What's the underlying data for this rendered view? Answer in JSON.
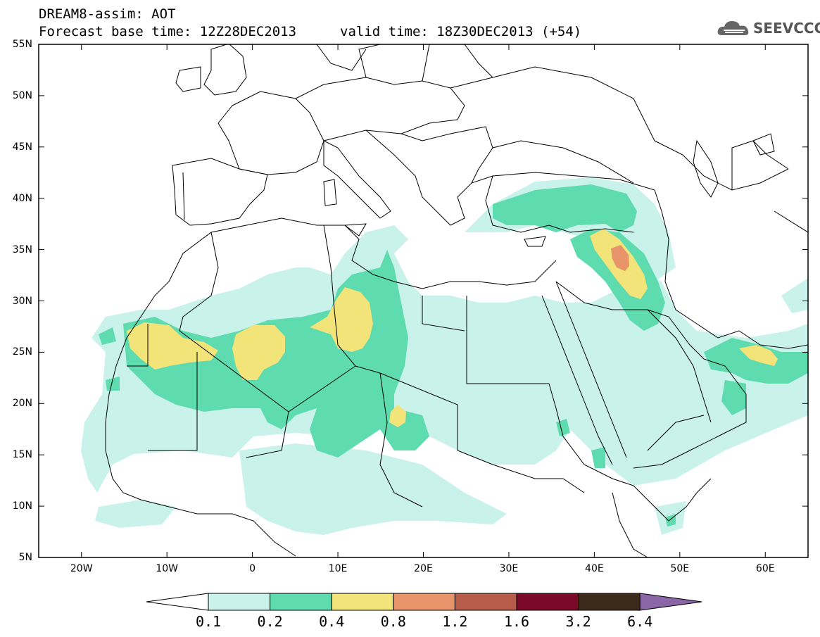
{
  "header": {
    "title_line1": "DREAM8-assim: AOT",
    "title_line2": "Forecast base time: 12Z28DEC2013",
    "valid_time": "valid time: 18Z30DEC2013 (+54)"
  },
  "logo": {
    "text": "SEEVCCC",
    "icon": "cloud-icon"
  },
  "map": {
    "variable": "AOT",
    "lat_labels": [
      "55N",
      "50N",
      "45N",
      "40N",
      "35N",
      "30N",
      "25N",
      "20N",
      "15N",
      "10N",
      "5N"
    ],
    "lon_labels": [
      "20W",
      "10W",
      "0",
      "10E",
      "20E",
      "30E",
      "40E",
      "50E",
      "60E"
    ],
    "lat_range": [
      5,
      55
    ],
    "lon_range": [
      -25,
      65
    ]
  },
  "colorbar": {
    "levels": [
      "0.1",
      "0.2",
      "0.4",
      "0.8",
      "1.2",
      "1.6",
      "3.2",
      "6.4"
    ],
    "colors": [
      "#ffffff",
      "#c8f2ea",
      "#5edcb0",
      "#f3e47a",
      "#e8946a",
      "#b85c4a",
      "#7a0a28",
      "#3c2a1a",
      "#8a66a6"
    ]
  },
  "colors": {
    "level1": "#c8f2ea",
    "level2": "#5edcb0",
    "level3": "#f3e47a",
    "level4": "#e8946a",
    "border": "#000000"
  }
}
